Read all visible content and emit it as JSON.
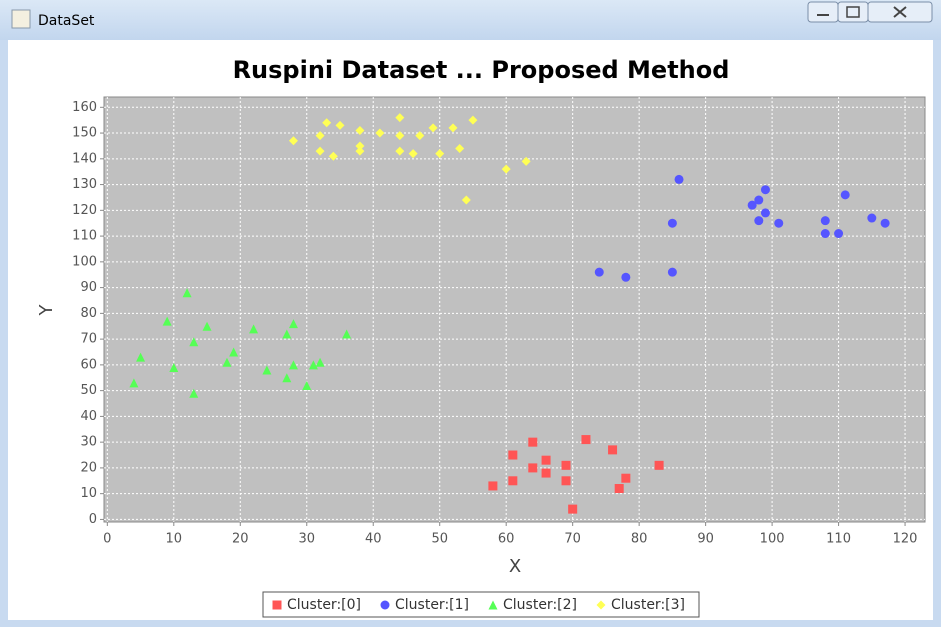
{
  "window": {
    "title": "DataSet"
  },
  "chart_data": {
    "type": "scatter",
    "title": "Ruspini  Dataset ... Proposed  Method",
    "x_label": "X",
    "y_label": "Y",
    "xlim": [
      -0.5,
      123
    ],
    "ylim": [
      -1,
      164
    ],
    "xticks": [
      0,
      10,
      20,
      30,
      40,
      50,
      60,
      70,
      80,
      90,
      100,
      110,
      120
    ],
    "yticks": [
      0,
      10,
      20,
      30,
      40,
      50,
      60,
      70,
      80,
      90,
      100,
      110,
      120,
      130,
      140,
      150,
      160
    ],
    "grid": true,
    "legend": "bottom",
    "series": [
      {
        "name": "Cluster:[0]",
        "color": "#ff5555",
        "marker": "square",
        "x": [
          58,
          61,
          61,
          64,
          64,
          66,
          66,
          69,
          69,
          70,
          72,
          76,
          77,
          78,
          83
        ],
        "values": [
          13,
          25,
          15,
          30,
          20,
          23,
          18,
          21,
          15,
          4,
          31,
          27,
          12,
          16,
          21
        ]
      },
      {
        "name": "Cluster:[1]",
        "color": "#5555ff",
        "marker": "circle",
        "x": [
          74,
          78,
          85,
          85,
          86,
          97,
          98,
          98,
          99,
          99,
          101,
          108,
          108,
          110,
          111,
          115,
          117
        ],
        "values": [
          96,
          94,
          96,
          115,
          132,
          122,
          124,
          116,
          128,
          119,
          115,
          116,
          111,
          111,
          126,
          117,
          115
        ]
      },
      {
        "name": "Cluster:[2]",
        "color": "#55ff55",
        "marker": "triangle",
        "x": [
          4,
          5,
          9,
          10,
          12,
          13,
          13,
          15,
          18,
          19,
          22,
          24,
          27,
          27,
          28,
          28,
          30,
          31,
          32,
          36
        ],
        "values": [
          53,
          63,
          77,
          59,
          88,
          49,
          69,
          75,
          61,
          65,
          74,
          58,
          55,
          72,
          60,
          76,
          52,
          60,
          61,
          72
        ]
      },
      {
        "name": "Cluster:[3]",
        "color": "#ffff55",
        "marker": "diamond",
        "x": [
          28,
          32,
          35,
          33,
          38,
          41,
          38,
          38,
          32,
          34,
          44,
          44,
          44,
          46,
          47,
          49,
          50,
          53,
          52,
          55,
          54,
          60,
          63
        ],
        "values": [
          147,
          149,
          153,
          154,
          151,
          150,
          145,
          143,
          143,
          141,
          156,
          149,
          143,
          142,
          149,
          152,
          142,
          144,
          152,
          155,
          124,
          136,
          139
        ]
      }
    ]
  }
}
